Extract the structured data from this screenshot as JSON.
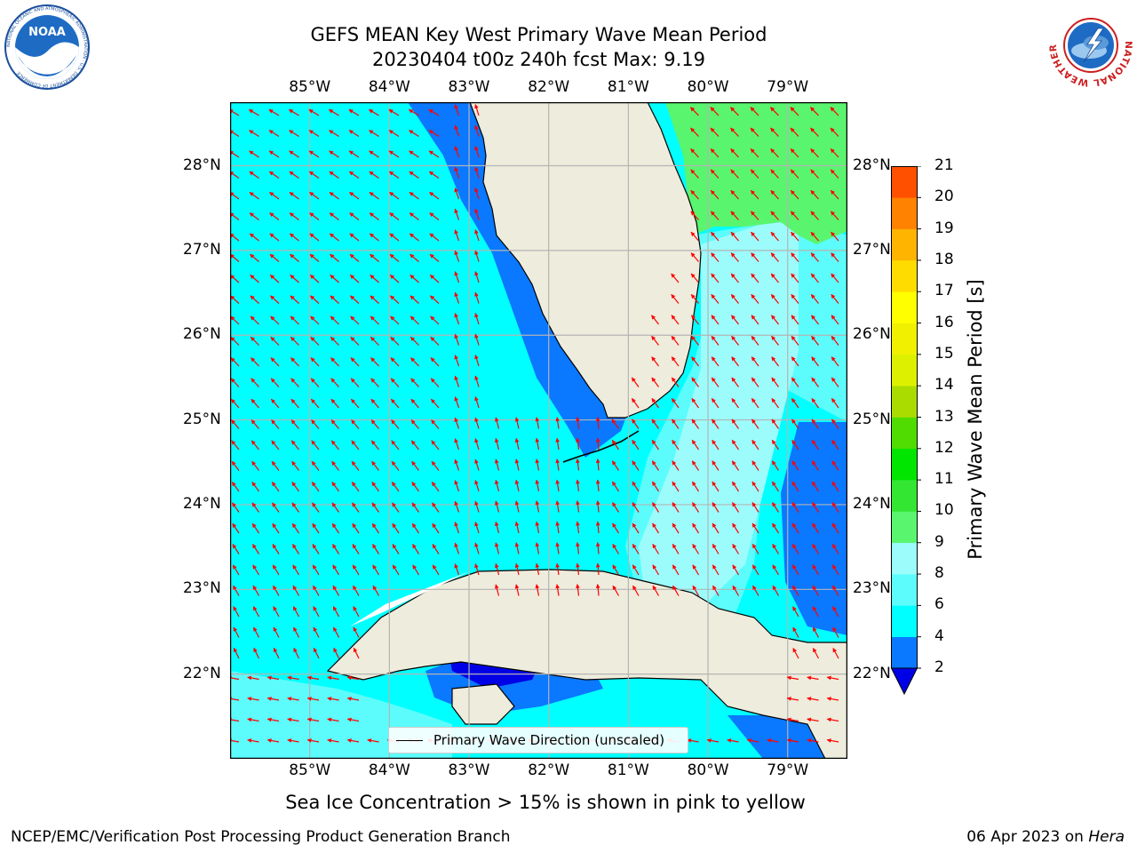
{
  "header": {
    "title_line1": "GEFS MEAN Key West Primary Wave Mean Period",
    "title_line2": "20230404 t00z 240h fcst   Max: 9.19"
  },
  "logos": {
    "left": "NOAA",
    "right": "NATIONAL WEATHER SERVICE",
    "left_ring": "NATIONAL OCEANIC AND ATMOSPHERIC ADMINISTRATION · U.S. DEPARTMENT OF COMMERCE"
  },
  "map": {
    "lon_labels": [
      "85°W",
      "84°W",
      "83°W",
      "82°W",
      "81°W",
      "80°W",
      "79°W"
    ],
    "lat_labels": [
      "28°N",
      "27°N",
      "26°N",
      "25°N",
      "24°N",
      "23°N",
      "22°N"
    ],
    "extent": {
      "lon_min": -86.0,
      "lon_max": -78.25,
      "lat_min": 21.0,
      "lat_max": 28.75
    },
    "legend_label": "Primary Wave Direction (unscaled)",
    "colors": {
      "land": "#eeecdc",
      "coast": "#000000",
      "grid": "#b4b4b4",
      "arrow": "#ff0000",
      "period_2_4": "#0a78ff",
      "period_4_6": "#00ffff",
      "period_6_8": "#5cfcfc",
      "period_8_9": "#9cfcfc",
      "period_9_10": "#5af56e",
      "period_lt2": "#0000e6"
    }
  },
  "colorbar": {
    "title": "Primary Wave Mean Period [s]",
    "ticks": [
      "2",
      "4",
      "6",
      "8",
      "9",
      "10",
      "11",
      "12",
      "13",
      "14",
      "15",
      "16",
      "17",
      "18",
      "19",
      "20",
      "21"
    ],
    "colors": [
      "#0a78ff",
      "#00ffff",
      "#5cfcfc",
      "#9cfcfc",
      "#5af56e",
      "#32e632",
      "#00e600",
      "#50dc00",
      "#aadc00",
      "#dcf000",
      "#f0f000",
      "#ffff00",
      "#ffdc00",
      "#ffb400",
      "#ff8200",
      "#ff5000",
      "#ff2800",
      "#ff0000"
    ],
    "under_color": "#0000e6"
  },
  "notes": {
    "sea_ice": "Sea Ice Concentration > 15% is shown in pink to yellow",
    "footer_left": "NCEP/EMC/Verification Post Processing Product Generation Branch",
    "footer_date": "06 Apr 2023 on",
    "footer_host": "Hera"
  }
}
